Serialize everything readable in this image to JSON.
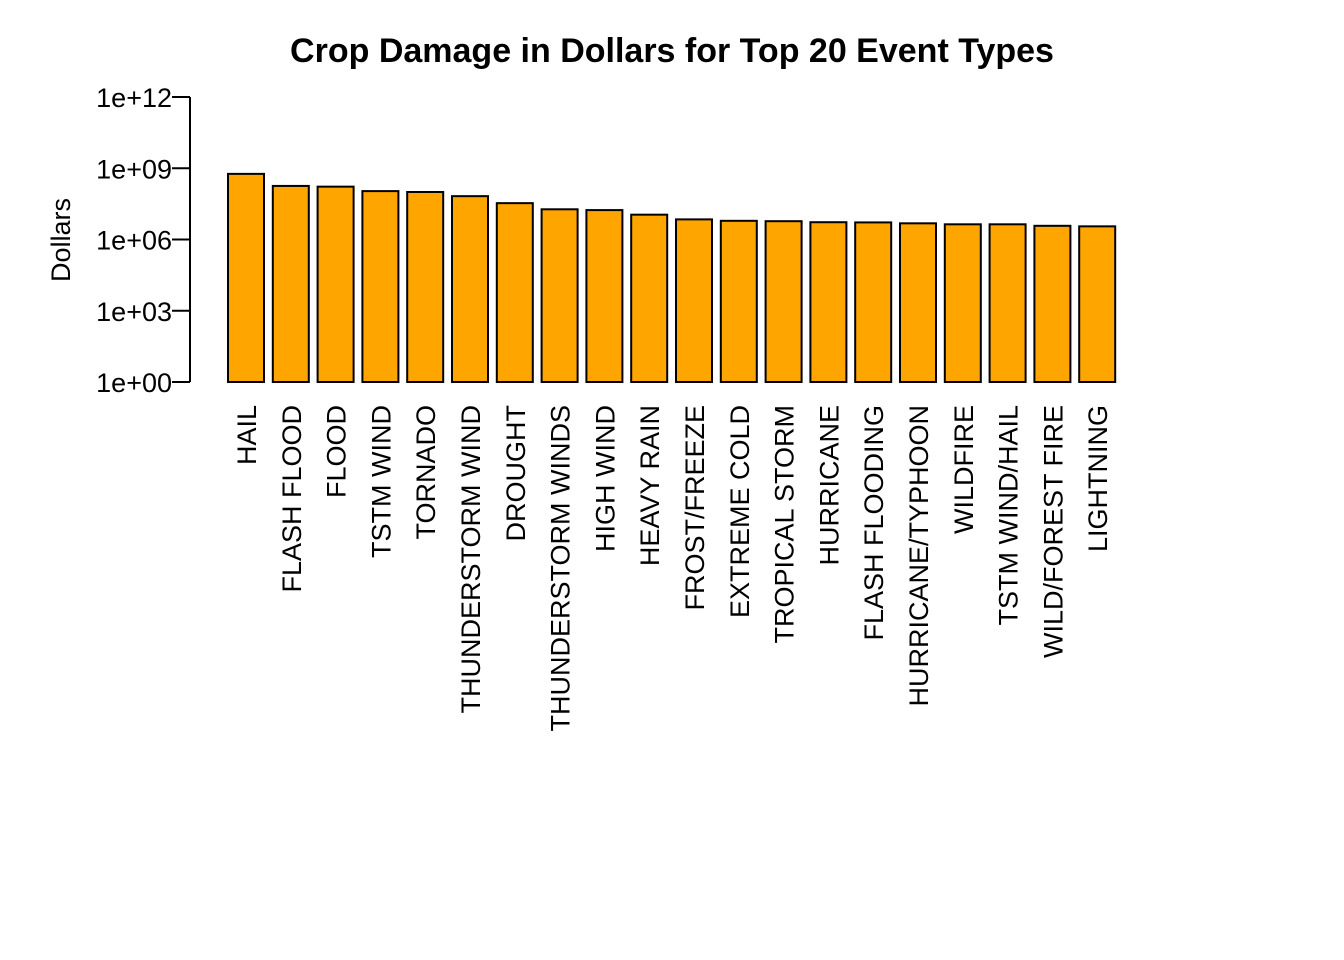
{
  "chart_data": {
    "type": "bar",
    "title": "Crop Damage in Dollars for Top 20 Event Types",
    "ylabel": "Dollars",
    "xlabel": "",
    "y_scale": "log10",
    "ylim": [
      1,
      1000000000000.0
    ],
    "y_ticks": [
      {
        "value": 1,
        "label": "1e+00"
      },
      {
        "value": 1000,
        "label": "1e+03"
      },
      {
        "value": 1000000,
        "label": "1e+06"
      },
      {
        "value": 1000000000,
        "label": "1e+09"
      },
      {
        "value": 1000000000000,
        "label": "1e+12"
      }
    ],
    "bar_color": "#FFA500",
    "bar_border": "#000000",
    "categories": [
      "HAIL",
      "FLASH FLOOD",
      "FLOOD",
      "TSTM WIND",
      "TORNADO",
      "THUNDERSTORM WIND",
      "DROUGHT",
      "THUNDERSTORM WINDS",
      "HIGH WIND",
      "HEAVY RAIN",
      "FROST/FREEZE",
      "EXTREME COLD",
      "TROPICAL STORM",
      "HURRICANE",
      "FLASH FLOODING",
      "HURRICANE/TYPHOON",
      "WILDFIRE",
      "TSTM WIND/HAIL",
      "WILD/FOREST FIRE",
      "LIGHTNING"
    ],
    "values": [
      580000000,
      180000000,
      168000000,
      109000000,
      100000000,
      66800000,
      33900000,
      18700000,
      17300000,
      11100000,
      7030000,
      6120000,
      5900000,
      5340000,
      5240000,
      4800000,
      4360000,
      4360000,
      3770000,
      3580000
    ],
    "grid": false,
    "legend": "none"
  }
}
